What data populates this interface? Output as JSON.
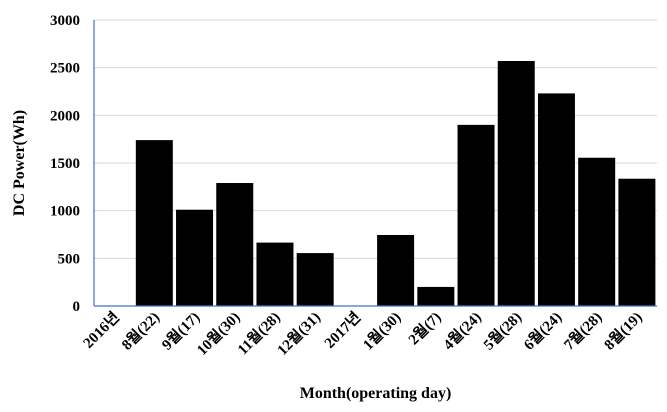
{
  "chart_data": {
    "type": "bar",
    "title": "",
    "xlabel": "Month(operating day)",
    "ylabel": "DC Power(Wh)",
    "ylim": [
      0,
      3000
    ],
    "yticks": [
      "0",
      "500",
      "1000",
      "1500",
      "2000",
      "2500",
      "3000"
    ],
    "grid": true,
    "legend": "none",
    "bar_color": "#000000",
    "grid_color": "#d9d9d9",
    "axis_color": "#4472c4",
    "categories": [
      "2016년",
      "8월(22)",
      "9월(17)",
      "10월(30)",
      "11월(28)",
      "12월(31)",
      "2017년",
      "1월(30)",
      "2월(7)",
      "4월(24)",
      "5월(28)",
      "6월(24)",
      "7월(28)",
      "8월(19)"
    ],
    "values": [
      null,
      1740,
      1010,
      1290,
      665,
      555,
      null,
      745,
      200,
      1900,
      2570,
      2230,
      1555,
      1335
    ]
  }
}
